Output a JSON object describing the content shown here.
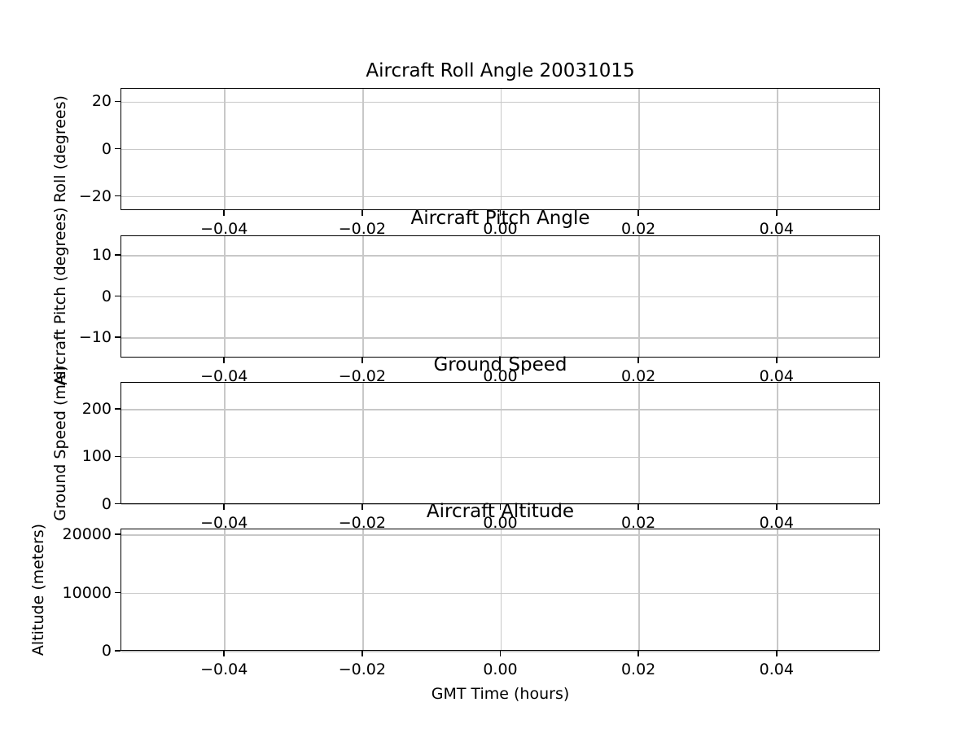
{
  "figure_title": "Aircraft Roll Angle 20031015",
  "x_axis_label": "GMT Time (hours)",
  "chart_data": [
    {
      "type": "line",
      "title": "Aircraft Roll Angle 20031015",
      "xlabel": "",
      "ylabel": "Roll (degrees)",
      "xlim": [
        -0.055,
        0.055
      ],
      "ylim": [
        -25.8,
        25.8
      ],
      "x_ticks": [
        -0.04,
        -0.02,
        0,
        0.02,
        0.04
      ],
      "x_tick_labels": [
        "−0.04",
        "−0.02",
        "0.00",
        "0.02",
        "0.04"
      ],
      "y_ticks": [
        20,
        0,
        -20
      ],
      "y_tick_labels": [
        "20",
        "0",
        "−20"
      ],
      "grid": true,
      "legend": false,
      "series": []
    },
    {
      "type": "line",
      "title": "Aircraft Pitch Angle",
      "xlabel": "",
      "ylabel": "Aircraft Pitch (degrees)",
      "xlim": [
        -0.055,
        0.055
      ],
      "ylim": [
        -14.8,
        14.8
      ],
      "x_ticks": [
        -0.04,
        -0.02,
        0,
        0.02,
        0.04
      ],
      "x_tick_labels": [
        "−0.04",
        "−0.02",
        "0.00",
        "0.02",
        "0.04"
      ],
      "y_ticks": [
        10,
        0,
        -10
      ],
      "y_tick_labels": [
        "10",
        "0",
        "−10"
      ],
      "grid": true,
      "legend": false,
      "series": []
    },
    {
      "type": "line",
      "title": "Ground Speed",
      "xlabel": "",
      "ylabel": "Ground Speed (m/s)",
      "xlim": [
        -0.055,
        0.055
      ],
      "ylim": [
        0,
        258
      ],
      "x_ticks": [
        -0.04,
        -0.02,
        0,
        0.02,
        0.04
      ],
      "x_tick_labels": [
        "−0.04",
        "−0.02",
        "0.00",
        "0.02",
        "0.04"
      ],
      "y_ticks": [
        200,
        100,
        0
      ],
      "y_tick_labels": [
        "200",
        "100",
        "0"
      ],
      "grid": true,
      "legend": false,
      "series": []
    },
    {
      "type": "line",
      "title": "Aircraft Altitude",
      "xlabel": "GMT Time (hours)",
      "ylabel": "Altitude (meters)",
      "xlim": [
        -0.055,
        0.055
      ],
      "ylim": [
        0,
        21000
      ],
      "x_ticks": [
        -0.04,
        -0.02,
        0,
        0.02,
        0.04
      ],
      "x_tick_labels": [
        "−0.04",
        "−0.02",
        "0.00",
        "0.02",
        "0.04"
      ],
      "y_ticks": [
        20000,
        10000,
        0
      ],
      "y_tick_labels": [
        "20000",
        "10000",
        "0"
      ],
      "grid": true,
      "legend": false,
      "series": []
    }
  ]
}
